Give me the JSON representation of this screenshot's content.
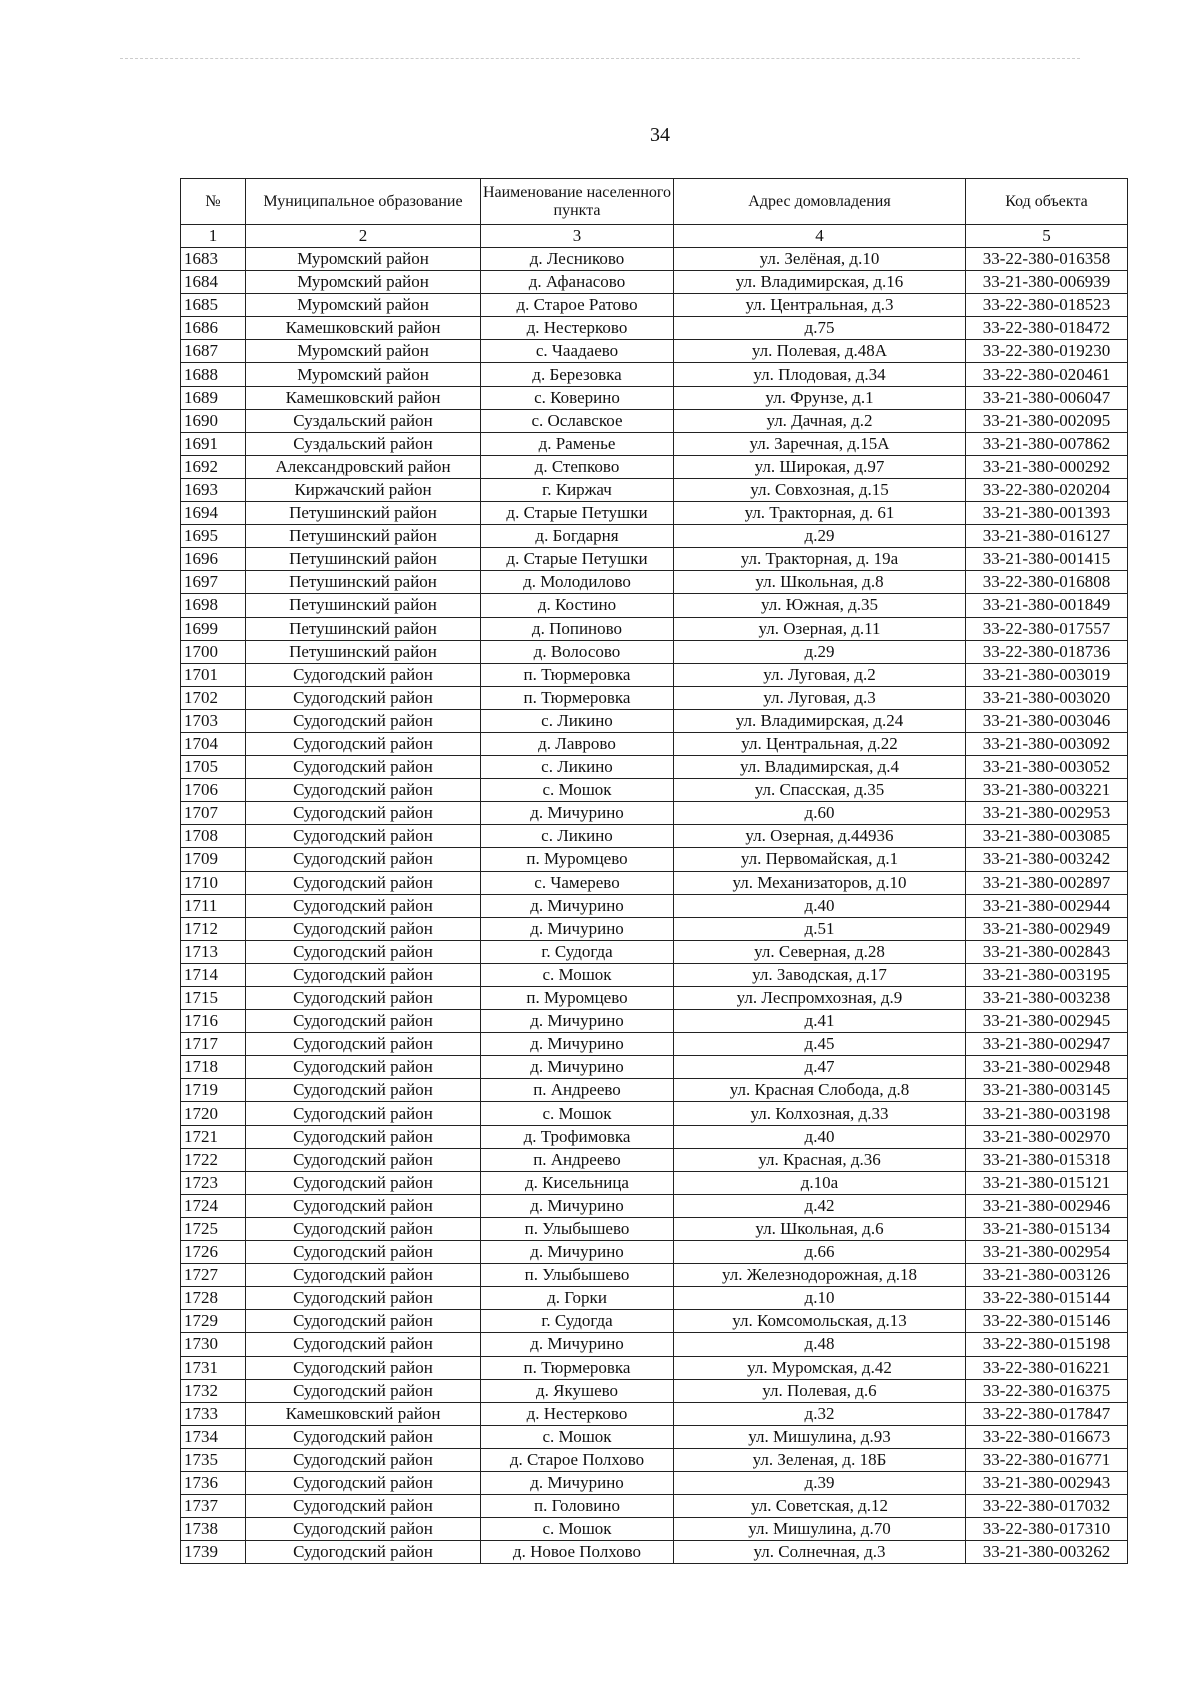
{
  "page_number": "34",
  "table": {
    "headers": [
      "№",
      "Муниципальное образование",
      "Наименование населенного пункта",
      "Адрес домовладения",
      "Код объекта"
    ],
    "column_numbers": [
      "1",
      "2",
      "3",
      "4",
      "5"
    ],
    "rows": [
      [
        "1683",
        "Муромский район",
        "д. Лесниково",
        "ул. Зелёная, д.10",
        "33-22-380-016358"
      ],
      [
        "1684",
        "Муромский район",
        "д. Афанасово",
        "ул. Владимирская, д.16",
        "33-21-380-006939"
      ],
      [
        "1685",
        "Муромский район",
        "д. Старое Ратово",
        "ул. Центральная, д.3",
        "33-22-380-018523"
      ],
      [
        "1686",
        "Камешковский район",
        "д. Нестерково",
        "д.75",
        "33-22-380-018472"
      ],
      [
        "1687",
        "Муромский район",
        "с. Чаадаево",
        "ул. Полевая, д.48А",
        "33-22-380-019230"
      ],
      [
        "1688",
        "Муромский район",
        "д. Березовка",
        "ул. Плодовая, д.34",
        "33-22-380-020461"
      ],
      [
        "1689",
        "Камешковский район",
        "с. Коверино",
        "ул. Фрунзе, д.1",
        "33-21-380-006047"
      ],
      [
        "1690",
        "Суздальский район",
        "с. Ославское",
        "ул. Дачная, д.2",
        "33-21-380-002095"
      ],
      [
        "1691",
        "Суздальский район",
        "д. Раменье",
        "ул. Заречная, д.15А",
        "33-21-380-007862"
      ],
      [
        "1692",
        "Александровский район",
        "д. Степково",
        "ул. Широкая, д.97",
        "33-21-380-000292"
      ],
      [
        "1693",
        "Киржачский район",
        "г. Киржач",
        "ул. Совхозная, д.15",
        "33-22-380-020204"
      ],
      [
        "1694",
        "Петушинский район",
        "д. Старые Петушки",
        "ул. Тракторная, д. 61",
        "33-21-380-001393"
      ],
      [
        "1695",
        "Петушинский район",
        "д. Богдарня",
        "д.29",
        "33-21-380-016127"
      ],
      [
        "1696",
        "Петушинский район",
        "д. Старые Петушки",
        "ул. Тракторная, д. 19а",
        "33-21-380-001415"
      ],
      [
        "1697",
        "Петушинский район",
        "д. Молодилово",
        "ул. Школьная, д.8",
        "33-22-380-016808"
      ],
      [
        "1698",
        "Петушинский район",
        "д. Костино",
        "ул. Южная, д.35",
        "33-21-380-001849"
      ],
      [
        "1699",
        "Петушинский район",
        "д. Попиново",
        "ул. Озерная, д.11",
        "33-22-380-017557"
      ],
      [
        "1700",
        "Петушинский район",
        "д. Волосово",
        "д.29",
        "33-22-380-018736"
      ],
      [
        "1701",
        "Судогодский район",
        "п. Тюрмеровка",
        "ул. Луговая, д.2",
        "33-21-380-003019"
      ],
      [
        "1702",
        "Судогодский район",
        "п. Тюрмеровка",
        "ул. Луговая, д.3",
        "33-21-380-003020"
      ],
      [
        "1703",
        "Судогодский район",
        "с. Ликино",
        "ул. Владимирская, д.24",
        "33-21-380-003046"
      ],
      [
        "1704",
        "Судогодский район",
        "д. Лаврово",
        "ул. Центральная, д.22",
        "33-21-380-003092"
      ],
      [
        "1705",
        "Судогодский район",
        "с. Ликино",
        "ул. Владимирская, д.4",
        "33-21-380-003052"
      ],
      [
        "1706",
        "Судогодский район",
        "с. Мошок",
        "ул. Спасская, д.35",
        "33-21-380-003221"
      ],
      [
        "1707",
        "Судогодский район",
        "д. Мичурино",
        "д.60",
        "33-21-380-002953"
      ],
      [
        "1708",
        "Судогодский район",
        "с. Ликино",
        "ул. Озерная, д.44936",
        "33-21-380-003085"
      ],
      [
        "1709",
        "Судогодский район",
        "п. Муромцево",
        "ул. Первомайская, д.1",
        "33-21-380-003242"
      ],
      [
        "1710",
        "Судогодский район",
        "с. Чамерево",
        "ул. Механизаторов, д.10",
        "33-21-380-002897"
      ],
      [
        "1711",
        "Судогодский район",
        "д. Мичурино",
        "д.40",
        "33-21-380-002944"
      ],
      [
        "1712",
        "Судогодский район",
        "д. Мичурино",
        "д.51",
        "33-21-380-002949"
      ],
      [
        "1713",
        "Судогодский район",
        "г. Судогда",
        "ул. Северная, д.28",
        "33-21-380-002843"
      ],
      [
        "1714",
        "Судогодский район",
        "с. Мошок",
        "ул. Заводская, д.17",
        "33-21-380-003195"
      ],
      [
        "1715",
        "Судогодский район",
        "п. Муромцево",
        "ул. Леспромхозная, д.9",
        "33-21-380-003238"
      ],
      [
        "1716",
        "Судогодский район",
        "д. Мичурино",
        "д.41",
        "33-21-380-002945"
      ],
      [
        "1717",
        "Судогодский район",
        "д. Мичурино",
        "д.45",
        "33-21-380-002947"
      ],
      [
        "1718",
        "Судогодский район",
        "д. Мичурино",
        "д.47",
        "33-21-380-002948"
      ],
      [
        "1719",
        "Судогодский район",
        "п. Андреево",
        "ул. Красная Слобода, д.8",
        "33-21-380-003145"
      ],
      [
        "1720",
        "Судогодский район",
        "с. Мошок",
        "ул. Колхозная, д.33",
        "33-21-380-003198"
      ],
      [
        "1721",
        "Судогодский район",
        "д. Трофимовка",
        "д.40",
        "33-21-380-002970"
      ],
      [
        "1722",
        "Судогодский район",
        "п. Андреево",
        "ул. Красная, д.36",
        "33-21-380-015318"
      ],
      [
        "1723",
        "Судогодский район",
        "д. Кисельница",
        "д.10а",
        "33-21-380-015121"
      ],
      [
        "1724",
        "Судогодский район",
        "д. Мичурино",
        "д.42",
        "33-21-380-002946"
      ],
      [
        "1725",
        "Судогодский район",
        "п. Улыбышево",
        "ул. Школьная, д.6",
        "33-21-380-015134"
      ],
      [
        "1726",
        "Судогодский район",
        "д. Мичурино",
        "д.66",
        "33-21-380-002954"
      ],
      [
        "1727",
        "Судогодский район",
        "п. Улыбышево",
        "ул. Железнодорожная, д.18",
        "33-21-380-003126"
      ],
      [
        "1728",
        "Судогодский район",
        "д. Горки",
        "д.10",
        "33-22-380-015144"
      ],
      [
        "1729",
        "Судогодский район",
        "г. Судогда",
        "ул. Комсомольская, д.13",
        "33-22-380-015146"
      ],
      [
        "1730",
        "Судогодский район",
        "д. Мичурино",
        "д.48",
        "33-22-380-015198"
      ],
      [
        "1731",
        "Судогодский район",
        "п. Тюрмеровка",
        "ул. Муромская, д.42",
        "33-22-380-016221"
      ],
      [
        "1732",
        "Судогодский район",
        "д. Якушево",
        "ул. Полевая, д.6",
        "33-22-380-016375"
      ],
      [
        "1733",
        "Камешковский район",
        "д. Нестерково",
        "д.32",
        "33-22-380-017847"
      ],
      [
        "1734",
        "Судогодский район",
        "с. Мошок",
        "ул. Мишулина, д.93",
        "33-22-380-016673"
      ],
      [
        "1735",
        "Судогодский район",
        "д. Старое Полхово",
        "ул. Зеленая, д. 18Б",
        "33-22-380-016771"
      ],
      [
        "1736",
        "Судогодский район",
        "д. Мичурино",
        "д.39",
        "33-21-380-002943"
      ],
      [
        "1737",
        "Судогодский район",
        "п. Головино",
        "ул. Советская, д.12",
        "33-22-380-017032"
      ],
      [
        "1738",
        "Судогодский район",
        "с. Мошок",
        "ул. Мишулина, д.70",
        "33-22-380-017310"
      ],
      [
        "1739",
        "Судогодский район",
        "д. Новое Полхово",
        "ул. Солнечная, д.3",
        "33-21-380-003262"
      ]
    ]
  }
}
